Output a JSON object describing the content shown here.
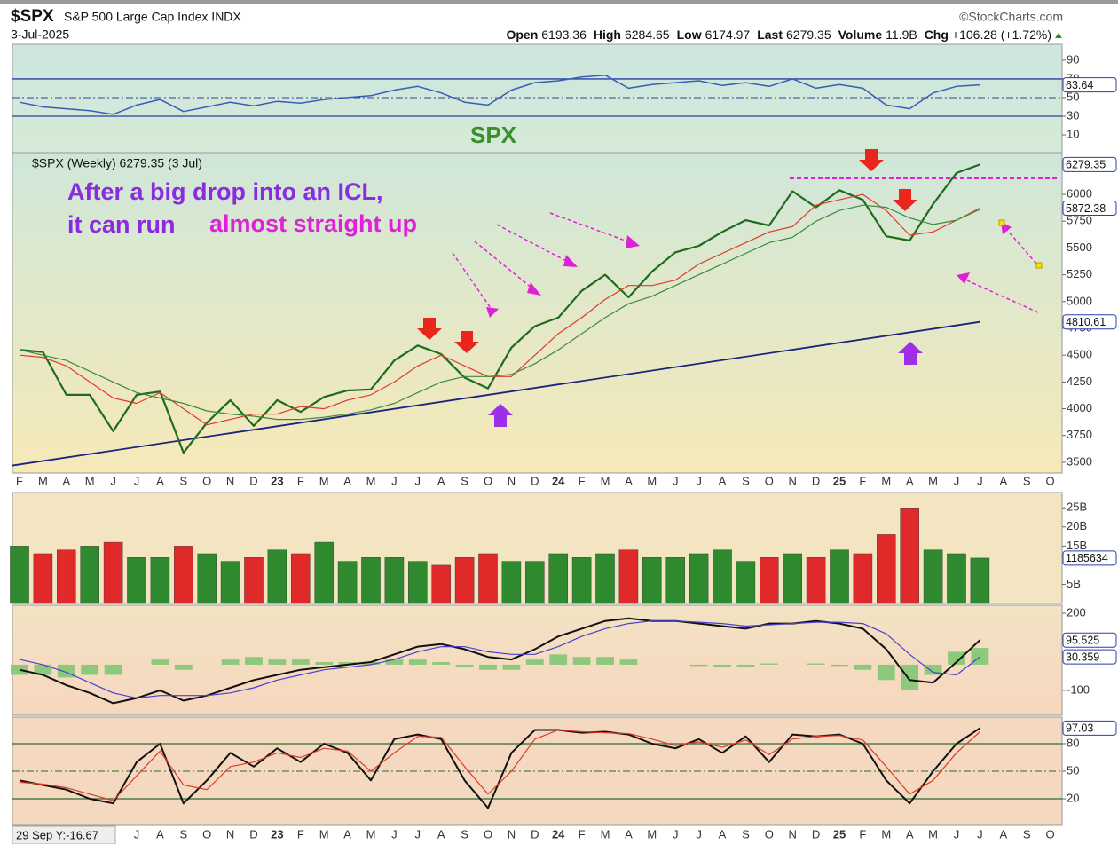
{
  "header": {
    "symbol": "$SPX",
    "name": "S&P 500 Large Cap Index INDX",
    "date": "3-Jul-2025",
    "source": "©StockCharts.com",
    "quote": [
      {
        "label": "Open",
        "value": "6193.36"
      },
      {
        "label": "High",
        "value": "6284.65"
      },
      {
        "label": "Low",
        "value": "6174.97"
      },
      {
        "label": "Last",
        "value": "6279.35"
      },
      {
        "label": "Volume",
        "value": "11.9B"
      },
      {
        "label": "Chg",
        "value": "+106.28 (+1.72%)"
      }
    ],
    "cursor_readout": "29 Sep Y:-16.67"
  },
  "chart_data": [
    {
      "type": "line",
      "ylim": [
        -9,
        107
      ],
      "yticks": [
        10,
        30,
        50,
        70,
        90
      ],
      "levels": [
        30,
        70
      ],
      "midline": 50,
      "level_color": "#2a3fa8",
      "series": [
        {
          "color": "#3b5bb8",
          "tag": true,
          "values": [
            45,
            40,
            38,
            36,
            32,
            42,
            48,
            35,
            40,
            45,
            41,
            46,
            44,
            48,
            50,
            52,
            58,
            62,
            55,
            45,
            42,
            58,
            66,
            68,
            72,
            74,
            60,
            64,
            66,
            68,
            63,
            66,
            62,
            70,
            60,
            64,
            60,
            42,
            38,
            55,
            62,
            63.64,
            null,
            null,
            null
          ]
        }
      ]
    },
    {
      "type": "line",
      "title": "SPX",
      "legend": "$SPX (Weekly) 6279.35 (3 Jul)",
      "annotations": [
        "After a big drop into an ICL,",
        "it can run",
        "almost straight up"
      ],
      "categories": [
        "F",
        "M",
        "A",
        "M",
        "J",
        "J",
        "A",
        "S",
        "O",
        "N",
        "D",
        "23",
        "F",
        "M",
        "A",
        "M",
        "J",
        "J",
        "A",
        "S",
        "O",
        "N",
        "D",
        "24",
        "F",
        "M",
        "A",
        "M",
        "J",
        "J",
        "A",
        "S",
        "O",
        "N",
        "D",
        "25",
        "F",
        "M",
        "A",
        "M",
        "J",
        "J",
        "A",
        "S",
        "O"
      ],
      "ylim": [
        3400,
        6390
      ],
      "yticks": [
        3500,
        3750,
        4000,
        4250,
        4500,
        4750,
        5000,
        5250,
        5500,
        5750,
        6000
      ],
      "resistance": 6150,
      "resistance_color": "#e020d8",
      "trendline": {
        "color": "#1a237e",
        "values": [
          3470,
          4810.61
        ]
      },
      "series": [
        {
          "color": "#1e6b1e",
          "width": 2.2,
          "tag": true,
          "values": [
            4550,
            4530,
            4130,
            4130,
            3790,
            4130,
            4160,
            3590,
            3870,
            4080,
            3840,
            4080,
            3970,
            4110,
            4170,
            4180,
            4450,
            4590,
            4510,
            4290,
            4190,
            4570,
            4770,
            4850,
            5100,
            5250,
            5040,
            5280,
            5460,
            5520,
            5650,
            5760,
            5710,
            6030,
            5880,
            6040,
            5950,
            5610,
            5570,
            5910,
            6200,
            6279.35,
            null,
            null,
            null
          ]
        },
        {
          "color": "#e03a2a",
          "width": 1.2,
          "tag": true,
          "values": [
            4500,
            4480,
            4400,
            4250,
            4100,
            4050,
            4150,
            4000,
            3850,
            3900,
            3950,
            3950,
            4020,
            4000,
            4080,
            4130,
            4250,
            4400,
            4500,
            4400,
            4300,
            4300,
            4500,
            4700,
            4850,
            5020,
            5150,
            5150,
            5200,
            5350,
            5450,
            5550,
            5650,
            5700,
            5900,
            5950,
            6000,
            5850,
            5620,
            5650,
            5760,
            5872.38,
            null,
            null,
            null
          ]
        },
        {
          "color": "#3c8a3c",
          "width": 1.2,
          "values": [
            4550,
            4500,
            4450,
            4350,
            4250,
            4150,
            4100,
            4050,
            3980,
            3950,
            3930,
            3900,
            3900,
            3920,
            3950,
            3990,
            4050,
            4150,
            4250,
            4300,
            4300,
            4320,
            4420,
            4550,
            4700,
            4850,
            4980,
            5050,
            5150,
            5250,
            5350,
            5450,
            5550,
            5600,
            5750,
            5850,
            5900,
            5880,
            5780,
            5720,
            5760,
            5860,
            null,
            null,
            null
          ]
        }
      ]
    },
    {
      "type": "bar",
      "ylim": [
        0,
        29
      ],
      "yticks": [
        {
          "value": 5,
          "label": "5B"
        },
        {
          "value": 15,
          "label": "15B"
        },
        {
          "value": 20,
          "label": "20B"
        },
        {
          "value": 25,
          "label": "25B"
        }
      ],
      "up_color": "#2f8a2f",
      "down_color": "#e02a2a",
      "series": [
        {
          "tag": true,
          "last_label": "1185634",
          "values": [
            15,
            13,
            14,
            15,
            16,
            12,
            12,
            15,
            13,
            11,
            12,
            14,
            13,
            16,
            11,
            12,
            12,
            11,
            10,
            12,
            13,
            11,
            11,
            13,
            12,
            13,
            14,
            12,
            12,
            13,
            14,
            11,
            12,
            13,
            12,
            14,
            13,
            18,
            25,
            14,
            13,
            11.85634,
            null,
            null,
            null
          ]
        }
      ]
    },
    {
      "type": "line",
      "ylim": [
        -197,
        231
      ],
      "yticks": [
        -100,
        200
      ],
      "series": [
        {
          "style": "histogram",
          "color": "#8cc97a",
          "values": [
            -40,
            -40,
            -50,
            -40,
            -40,
            0,
            20,
            -20,
            0,
            20,
            30,
            20,
            20,
            10,
            10,
            10,
            20,
            20,
            10,
            -10,
            -20,
            -20,
            20,
            40,
            30,
            30,
            20,
            0,
            0,
            -5,
            -10,
            -10,
            5,
            0,
            5,
            -5,
            -20,
            -60,
            -100,
            -40,
            50,
            65,
            null,
            null,
            null
          ]
        },
        {
          "color": "#111111",
          "width": 2,
          "tag": true,
          "values": [
            -20,
            -40,
            -80,
            -110,
            -150,
            -130,
            -100,
            -140,
            -120,
            -90,
            -60,
            -40,
            -20,
            -10,
            0,
            10,
            40,
            70,
            80,
            60,
            30,
            20,
            60,
            110,
            140,
            170,
            180,
            170,
            170,
            160,
            150,
            140,
            160,
            160,
            170,
            160,
            140,
            60,
            -60,
            -70,
            10,
            95.525,
            null,
            null,
            null
          ]
        },
        {
          "color": "#4a3fd0",
          "width": 1.2,
          "tag": true,
          "values": [
            20,
            0,
            -30,
            -70,
            -110,
            -130,
            -120,
            -120,
            -120,
            -110,
            -90,
            -60,
            -40,
            -20,
            -10,
            0,
            20,
            50,
            70,
            70,
            50,
            40,
            40,
            70,
            110,
            140,
            160,
            170,
            170,
            165,
            160,
            150,
            155,
            160,
            165,
            165,
            160,
            120,
            40,
            -30,
            -40,
            30.359,
            null,
            null,
            null
          ]
        }
      ]
    },
    {
      "type": "line",
      "ylim": [
        -9,
        109
      ],
      "yticks": [
        20,
        50,
        80
      ],
      "levels": [
        20,
        80
      ],
      "midline": 50,
      "level_color": "#2e6b2e",
      "series": [
        {
          "color": "#111111",
          "width": 2,
          "tag": true,
          "values": [
            40,
            35,
            30,
            20,
            15,
            60,
            80,
            15,
            40,
            70,
            55,
            75,
            60,
            80,
            70,
            40,
            85,
            90,
            85,
            40,
            10,
            70,
            95,
            95,
            92,
            93,
            90,
            80,
            75,
            85,
            70,
            88,
            60,
            90,
            88,
            90,
            80,
            40,
            15,
            50,
            80,
            97.03,
            null,
            null,
            null
          ]
        },
        {
          "color": "#e03a2a",
          "width": 1.2,
          "values": [
            38,
            36,
            32,
            25,
            18,
            45,
            72,
            35,
            30,
            55,
            60,
            70,
            65,
            75,
            72,
            50,
            70,
            88,
            87,
            55,
            25,
            50,
            85,
            95,
            93,
            92,
            91,
            85,
            78,
            82,
            76,
            84,
            68,
            85,
            88,
            89,
            84,
            55,
            25,
            40,
            70,
            93,
            null,
            null,
            null
          ]
        }
      ]
    }
  ]
}
